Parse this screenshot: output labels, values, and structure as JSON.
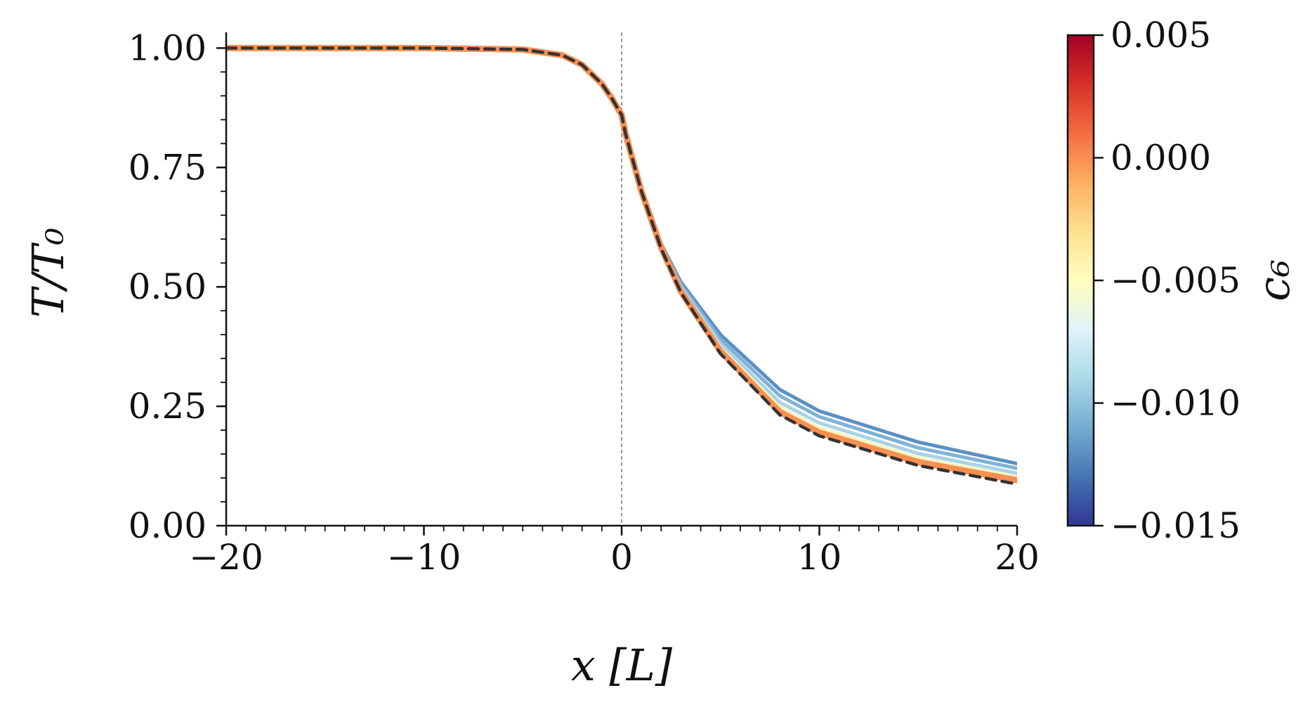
{
  "chart_data": {
    "type": "line",
    "title": "",
    "xlabel": "x [L]",
    "ylabel": "T/T₀",
    "xlim": [
      -20,
      20
    ],
    "ylim": [
      0,
      1.03
    ],
    "x_ticks": [
      -20,
      -10,
      0,
      10,
      20
    ],
    "x_tick_labels": [
      "−20",
      "−10",
      "0",
      "10",
      "20"
    ],
    "y_ticks": [
      0,
      0.25,
      0.5,
      0.75,
      1.0
    ],
    "y_tick_labels": [
      "0.00",
      "0.25",
      "0.50",
      "0.75",
      "1.00"
    ],
    "grid": false,
    "vertical_reference_line_x": 0,
    "colorbar": {
      "label": "c₆",
      "range": [
        -0.015,
        0.005
      ],
      "ticks": [
        0.005,
        0.0,
        -0.005,
        -0.01,
        -0.015
      ],
      "tick_labels": [
        "0.005",
        "0.000",
        "−0.005",
        "−0.010",
        "−0.015"
      ],
      "colormap": [
        "#313695",
        "#4575b4",
        "#74add1",
        "#abd9e9",
        "#e0f3f8",
        "#ffffbf",
        "#fee090",
        "#fdae61",
        "#f46d43",
        "#d73027",
        "#a50026"
      ]
    },
    "series": [
      {
        "c6": -0.014,
        "color": "#5b8fc4",
        "x": [
          -20,
          -10,
          -5,
          -3,
          -2,
          -1,
          -0.5,
          0,
          0.2,
          1,
          2,
          3,
          5,
          8,
          10,
          15,
          20
        ],
        "y": [
          1.0,
          1.0,
          0.997,
          0.985,
          0.965,
          0.925,
          0.895,
          0.86,
          0.82,
          0.7,
          0.59,
          0.51,
          0.4,
          0.285,
          0.24,
          0.175,
          0.13
        ]
      },
      {
        "c6": -0.011,
        "color": "#7fb2d7",
        "x": [
          -20,
          -10,
          -5,
          -3,
          -2,
          -1,
          -0.5,
          0,
          0.2,
          1,
          2,
          3,
          5,
          8,
          10,
          15,
          20
        ],
        "y": [
          1.0,
          1.0,
          0.997,
          0.985,
          0.965,
          0.925,
          0.895,
          0.86,
          0.82,
          0.7,
          0.588,
          0.505,
          0.39,
          0.272,
          0.228,
          0.163,
          0.12
        ]
      },
      {
        "c6": -0.008,
        "color": "#a9d3e6",
        "x": [
          -20,
          -10,
          -5,
          -3,
          -2,
          -1,
          -0.5,
          0,
          0.2,
          1,
          2,
          3,
          5,
          8,
          10,
          15,
          20
        ],
        "y": [
          1.0,
          1.0,
          0.997,
          0.985,
          0.965,
          0.925,
          0.895,
          0.86,
          0.82,
          0.7,
          0.586,
          0.5,
          0.38,
          0.258,
          0.215,
          0.151,
          0.11
        ]
      },
      {
        "c6": -0.005,
        "color": "#f5f5c0",
        "x": [
          -20,
          -10,
          -5,
          -3,
          -2,
          -1,
          -0.5,
          0,
          0.2,
          1,
          2,
          3,
          5,
          8,
          10,
          15,
          20
        ],
        "y": [
          1.0,
          1.0,
          0.997,
          0.985,
          0.965,
          0.925,
          0.895,
          0.86,
          0.82,
          0.7,
          0.584,
          0.495,
          0.372,
          0.248,
          0.205,
          0.142,
          0.102
        ]
      },
      {
        "c6": 0.0,
        "color": "#f88f52",
        "x": [
          -20,
          -10,
          -5,
          -3,
          -2,
          -1,
          -0.5,
          0,
          0.2,
          1,
          2,
          3,
          5,
          8,
          10,
          15,
          20
        ],
        "y": [
          1.0,
          1.0,
          0.997,
          0.985,
          0.965,
          0.925,
          0.895,
          0.86,
          0.82,
          0.7,
          0.582,
          0.49,
          0.365,
          0.238,
          0.195,
          0.133,
          0.095
        ]
      },
      {
        "c6": null,
        "color": "#333333",
        "dashed": true,
        "x": [
          -20,
          -10,
          -5,
          -3,
          -2,
          -1,
          -0.5,
          0,
          0.2,
          1,
          2,
          3,
          5,
          8,
          10,
          15,
          20
        ],
        "y": [
          1.0,
          1.0,
          0.997,
          0.985,
          0.965,
          0.925,
          0.895,
          0.86,
          0.82,
          0.7,
          0.58,
          0.488,
          0.36,
          0.232,
          0.188,
          0.126,
          0.087
        ]
      }
    ]
  }
}
